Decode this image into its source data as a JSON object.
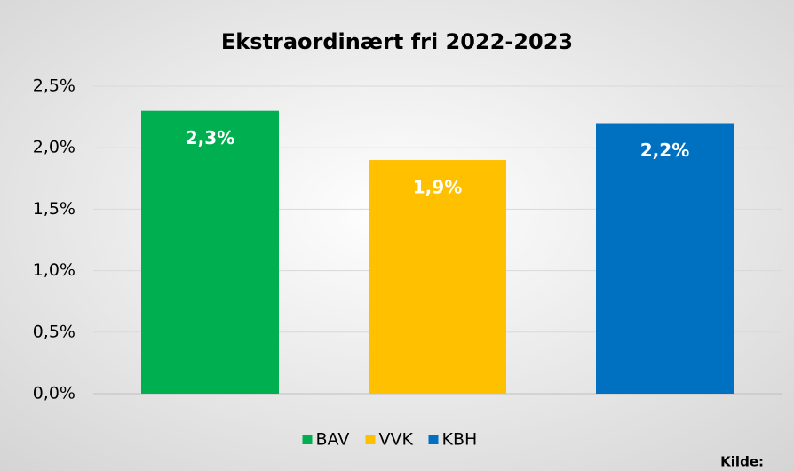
{
  "chart_data": {
    "type": "bar",
    "title": "Ekstraordinært fri 2022-2023",
    "categories": [
      null
    ],
    "series": [
      {
        "name": "BAV",
        "color": "#00b050",
        "values": [
          2.3
        ],
        "value_labels": [
          "2,3%"
        ]
      },
      {
        "name": "VVK",
        "color": "#ffc000",
        "values": [
          1.9
        ],
        "value_labels": [
          "1,9%"
        ]
      },
      {
        "name": "KBH",
        "color": "#0070c0",
        "values": [
          2.2
        ],
        "value_labels": [
          "2,2%"
        ]
      }
    ],
    "ylim": [
      0,
      2.5
    ],
    "yticks": [
      {
        "value": 0,
        "label": "0,0%"
      },
      {
        "value": 0.5,
        "label": "0,5%"
      },
      {
        "value": 1,
        "label": "1,0%"
      },
      {
        "value": 1.5,
        "label": "1,5%"
      },
      {
        "value": 2,
        "label": "2,0%"
      },
      {
        "value": 2.5,
        "label": "2,5%"
      }
    ],
    "grid": true,
    "legend": "bottom",
    "annotations": [
      "Kilde:"
    ]
  }
}
